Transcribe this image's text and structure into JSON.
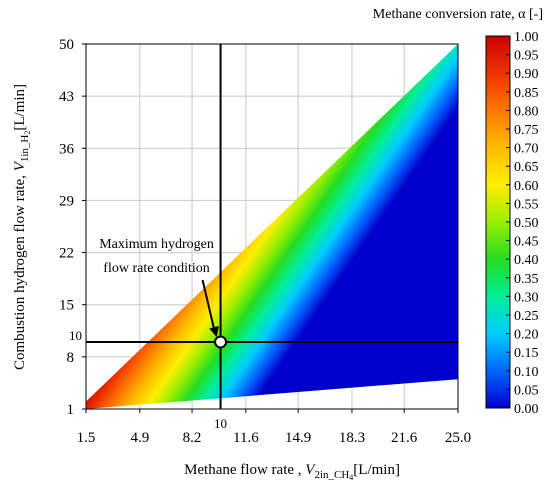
{
  "chart_data": {
    "type": "heatmap",
    "xlabel_main": "Methane flow rate , ",
    "xlabel_symbol": "V",
    "xlabel_sub": "2in_CH",
    "xlabel_sub_small": "4",
    "xlabel_unit": "[L/min]",
    "ylabel_main": "Combustion hydrogen flow rate, ",
    "ylabel_symbol": "V",
    "ylabel_sub": "1in_H",
    "ylabel_sub_small": "2",
    "ylabel_unit": "[L/min]",
    "colorbar_label": "Methane conversion rate, α [-]",
    "x_ticks": [
      "1.5",
      "4.9",
      "8.2",
      "11.6",
      "14.9",
      "18.3",
      "21.6",
      "25.0"
    ],
    "x_tick_values": [
      1.5,
      4.9,
      8.2,
      11.6,
      14.9,
      18.3,
      21.6,
      25.0
    ],
    "y_ticks": [
      "1",
      "8",
      "15",
      "22",
      "29",
      "36",
      "43",
      "50"
    ],
    "y_tick_values": [
      1,
      8,
      15,
      22,
      29,
      36,
      43,
      50
    ],
    "xlim": [
      1.5,
      25.0
    ],
    "ylim": [
      1,
      50
    ],
    "colorbar_ticks": [
      "1.00",
      "0.95",
      "0.90",
      "0.85",
      "0.80",
      "0.75",
      "0.70",
      "0.65",
      "0.60",
      "0.55",
      "0.50",
      "0.45",
      "0.40",
      "0.35",
      "0.30",
      "0.25",
      "0.20",
      "0.15",
      "0.10",
      "0.05",
      "0.00"
    ],
    "colorbar_range": [
      0.0,
      1.0
    ],
    "colormap": [
      "#0000cc",
      "#0066ff",
      "#00ccff",
      "#00ee99",
      "#22dd22",
      "#99ee00",
      "#ffee00",
      "#ffbb00",
      "#ff7700",
      "#ee3300",
      "#cc0000"
    ],
    "grid": true,
    "data_region": {
      "upper_boundary": [
        [
          1.5,
          2.0
        ],
        [
          25.0,
          50.0
        ]
      ],
      "lower_boundary": [
        [
          1.5,
          1.0
        ],
        [
          25.0,
          5.0
        ]
      ]
    },
    "crosshair": {
      "x": 10.0,
      "y": 10.0
    },
    "crosshair_x_label": "10",
    "crosshair_y_label": "10",
    "annotation": {
      "line1": "Maximum hydrogen",
      "line2": "flow rate condition",
      "point": [
        10.0,
        10.0
      ]
    }
  }
}
